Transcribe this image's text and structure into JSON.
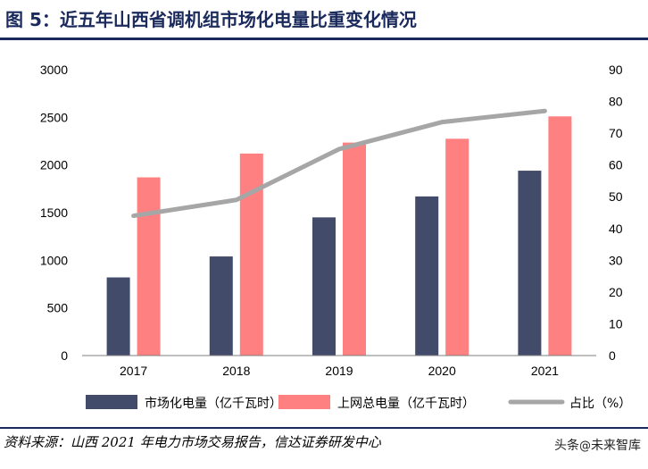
{
  "header": {
    "title": "图 5：近五年山西省调机组市场化电量比重变化情况"
  },
  "chart_data": {
    "type": "bar",
    "categories": [
      "2017",
      "2018",
      "2019",
      "2020",
      "2021"
    ],
    "series": [
      {
        "name": "市场化电量（亿千瓦时）",
        "kind": "bar",
        "axis": "left",
        "color": "#434b6b",
        "values": [
          820,
          1040,
          1450,
          1670,
          1940
        ]
      },
      {
        "name": "上网总电量（亿千瓦时）",
        "kind": "bar",
        "axis": "left",
        "color": "#ff8080",
        "values": [
          1870,
          2120,
          2235,
          2275,
          2510
        ]
      },
      {
        "name": "占比（%）",
        "kind": "line",
        "axis": "right",
        "color": "#a6a6a6",
        "values": [
          44,
          49,
          65,
          73.5,
          77
        ]
      }
    ],
    "y_left": {
      "min": 0,
      "max": 3000,
      "ticks": [
        "0",
        "500",
        "1000",
        "1500",
        "2000",
        "2500",
        "3000"
      ]
    },
    "y_right": {
      "min": 0,
      "max": 90,
      "ticks": [
        "0",
        "10",
        "20",
        "30",
        "40",
        "50",
        "60",
        "70",
        "80",
        "90"
      ]
    },
    "grid": false,
    "legend_position": "bottom"
  },
  "footer": {
    "source": "资料来源：山西 2021 年电力市场交易报告，信达证券研发中心",
    "watermark_prefix": "头条",
    "watermark_at": "@",
    "watermark_name": "未来智库"
  }
}
